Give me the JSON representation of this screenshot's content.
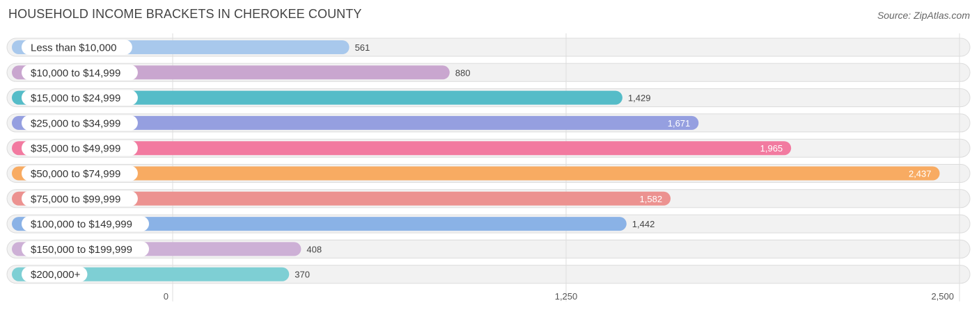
{
  "title": "HOUSEHOLD INCOME BRACKETS IN CHEROKEE COUNTY",
  "source": "Source: ZipAtlas.com",
  "chart_data": {
    "type": "bar",
    "orientation": "horizontal",
    "categories": [
      "Less than $10,000",
      "$10,000 to $14,999",
      "$15,000 to $24,999",
      "$25,000 to $34,999",
      "$35,000 to $49,999",
      "$50,000 to $74,999",
      "$75,000 to $99,999",
      "$100,000 to $149,999",
      "$150,000 to $199,999",
      "$200,000+"
    ],
    "values": [
      561,
      880,
      1429,
      1671,
      1965,
      2437,
      1582,
      1442,
      408,
      370
    ],
    "value_labels": [
      "561",
      "880",
      "1,429",
      "1,671",
      "1,965",
      "2,437",
      "1,582",
      "1,442",
      "408",
      "370"
    ],
    "colors": [
      "#a8c8ec",
      "#c9a6cf",
      "#55bcc8",
      "#959fe0",
      "#f27aa0",
      "#f8ab62",
      "#ec9290",
      "#8ab2e6",
      "#cdb0d6",
      "#7ecfd4"
    ],
    "xlim": [
      0,
      2500
    ],
    "xticks": [
      0,
      1250,
      2500
    ],
    "xtick_labels": [
      "0",
      "1,250",
      "2,500"
    ],
    "grid": true
  }
}
